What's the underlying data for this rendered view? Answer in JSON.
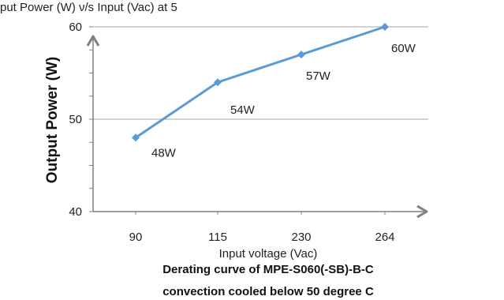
{
  "header_fragment": "put Power (W) ν/s Input (Vac) at 5",
  "chart_data": {
    "type": "line",
    "categories": [
      "90",
      "115",
      "230",
      "264"
    ],
    "series": [
      {
        "values": [
          48,
          54,
          57,
          60
        ],
        "color": "#5b9bd5",
        "marker": "diamond"
      }
    ],
    "data_labels": [
      "48W",
      "54W",
      "57W",
      "60W"
    ],
    "ylabel": "Output Power (W)",
    "xlabel": "Input voltage (Vac)",
    "ylim": [
      40,
      60
    ],
    "y_labeled_ticks": [
      40,
      50,
      60
    ],
    "y_minor_step": 2.5,
    "gridlines": [
      50,
      60
    ],
    "grid_color": "#a6a6a6",
    "axis_color": "#808080",
    "caption_lines": [
      "Derating curve of MPE-S060(-SB)-B-C",
      "convection cooled below 50 degree C"
    ]
  }
}
